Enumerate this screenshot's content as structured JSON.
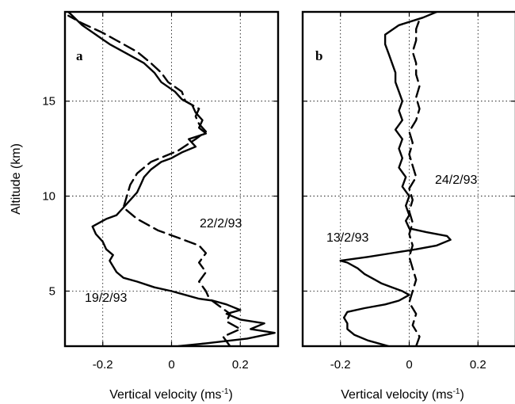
{
  "chart_data": [
    {
      "panel": "a",
      "type": "line",
      "xlabel": "Vertical velocity (ms-1)",
      "ylabel": "Altitude (km)",
      "xlim": [
        -0.31,
        0.31
      ],
      "ylim": [
        2.1,
        19.7
      ],
      "xticks": [
        -0.2,
        0,
        0.2
      ],
      "xtick_labels": [
        "-0.2",
        "0",
        "0.2"
      ],
      "yticks": [
        5,
        10,
        15
      ],
      "ytick_labels": [
        "5",
        "10",
        "15"
      ],
      "grid": true,
      "series": [
        {
          "name": "19/2/93",
          "style": "solid",
          "points": [
            [
              0.02,
              2.1
            ],
            [
              0.1,
              2.25
            ],
            [
              0.22,
              2.5
            ],
            [
              0.3,
              2.8
            ],
            [
              0.23,
              3.0
            ],
            [
              0.27,
              3.3
            ],
            [
              0.2,
              3.5
            ],
            [
              0.16,
              3.8
            ],
            [
              0.2,
              4.0
            ],
            [
              0.16,
              4.3
            ],
            [
              0.12,
              4.5
            ],
            [
              0.08,
              4.6
            ],
            [
              0.04,
              4.8
            ],
            [
              0.0,
              5.0
            ],
            [
              -0.05,
              5.2
            ],
            [
              -0.1,
              5.5
            ],
            [
              -0.14,
              5.7
            ],
            [
              -0.16,
              6.0
            ],
            [
              -0.17,
              6.3
            ],
            [
              -0.18,
              6.6
            ],
            [
              -0.17,
              6.9
            ],
            [
              -0.19,
              7.2
            ],
            [
              -0.2,
              7.6
            ],
            [
              -0.22,
              8.0
            ],
            [
              -0.23,
              8.4
            ],
            [
              -0.19,
              8.8
            ],
            [
              -0.16,
              9.0
            ],
            [
              -0.14,
              9.4
            ],
            [
              -0.12,
              9.8
            ],
            [
              -0.1,
              10.2
            ],
            [
              -0.09,
              10.6
            ],
            [
              -0.08,
              11.0
            ],
            [
              -0.06,
              11.4
            ],
            [
              -0.03,
              11.8
            ],
            [
              0.0,
              12.0
            ],
            [
              0.03,
              12.3
            ],
            [
              0.07,
              12.6
            ],
            [
              0.05,
              13.0
            ],
            [
              0.1,
              13.3
            ],
            [
              0.08,
              13.6
            ],
            [
              0.09,
              14.0
            ],
            [
              0.07,
              14.4
            ],
            [
              0.06,
              14.8
            ],
            [
              0.03,
              15.1
            ],
            [
              0.01,
              15.5
            ],
            [
              -0.03,
              16.0
            ],
            [
              -0.05,
              16.5
            ],
            [
              -0.08,
              17.0
            ],
            [
              -0.13,
              17.5
            ],
            [
              -0.18,
              18.0
            ],
            [
              -0.22,
              18.5
            ],
            [
              -0.26,
              19.0
            ],
            [
              -0.3,
              19.7
            ]
          ]
        },
        {
          "name": "22/2/93",
          "style": "dashed",
          "points": [
            [
              0.17,
              2.1
            ],
            [
              0.15,
              2.6
            ],
            [
              0.2,
              3.0
            ],
            [
              0.16,
              3.4
            ],
            [
              0.17,
              3.8
            ],
            [
              0.14,
              4.2
            ],
            [
              0.11,
              4.6
            ],
            [
              0.1,
              5.0
            ],
            [
              0.08,
              5.5
            ],
            [
              0.1,
              6.0
            ],
            [
              0.08,
              6.5
            ],
            [
              0.1,
              7.0
            ],
            [
              0.08,
              7.4
            ],
            [
              0.02,
              7.8
            ],
            [
              -0.04,
              8.2
            ],
            [
              -0.1,
              8.8
            ],
            [
              -0.14,
              9.4
            ],
            [
              -0.13,
              10.0
            ],
            [
              -0.12,
              10.6
            ],
            [
              -0.1,
              11.2
            ],
            [
              -0.06,
              11.8
            ],
            [
              0.02,
              12.4
            ],
            [
              0.07,
              13.0
            ],
            [
              0.1,
              13.4
            ],
            [
              0.08,
              13.8
            ],
            [
              0.07,
              14.2
            ],
            [
              0.08,
              14.6
            ],
            [
              0.04,
              15.0
            ],
            [
              0.03,
              15.5
            ],
            [
              -0.01,
              16.0
            ],
            [
              -0.03,
              16.5
            ],
            [
              -0.06,
              17.0
            ],
            [
              -0.1,
              17.6
            ],
            [
              -0.16,
              18.2
            ],
            [
              -0.2,
              18.6
            ],
            [
              -0.26,
              19.1
            ],
            [
              -0.3,
              19.5
            ]
          ]
        }
      ]
    },
    {
      "panel": "b",
      "type": "line",
      "xlabel": "Vertical velocity (ms-1)",
      "xlim": [
        -0.31,
        0.31
      ],
      "ylim": [
        2.1,
        19.7
      ],
      "xticks": [
        -0.2,
        0,
        0.2
      ],
      "xtick_labels": [
        "-0.2",
        "0",
        "0.2"
      ],
      "yticks": [
        5,
        10,
        15
      ],
      "grid": true,
      "series": [
        {
          "name": "13/2/93",
          "style": "solid",
          "points": [
            [
              -0.06,
              2.1
            ],
            [
              -0.12,
              2.4
            ],
            [
              -0.16,
              2.7
            ],
            [
              -0.18,
              3.0
            ],
            [
              -0.18,
              3.3
            ],
            [
              -0.19,
              3.6
            ],
            [
              -0.18,
              3.9
            ],
            [
              -0.13,
              4.1
            ],
            [
              -0.07,
              4.3
            ],
            [
              -0.03,
              4.5
            ],
            [
              0.0,
              4.8
            ],
            [
              -0.02,
              5.0
            ],
            [
              -0.05,
              5.2
            ],
            [
              -0.08,
              5.4
            ],
            [
              -0.1,
              5.6
            ],
            [
              -0.13,
              5.9
            ],
            [
              -0.15,
              6.2
            ],
            [
              -0.18,
              6.5
            ],
            [
              -0.2,
              6.6
            ],
            [
              -0.12,
              6.8
            ],
            [
              -0.05,
              7.0
            ],
            [
              0.02,
              7.2
            ],
            [
              0.08,
              7.4
            ],
            [
              0.12,
              7.7
            ],
            [
              0.11,
              7.9
            ],
            [
              0.05,
              8.1
            ],
            [
              0.0,
              8.3
            ],
            [
              -0.01,
              8.7
            ],
            [
              0.0,
              9.0
            ],
            [
              -0.01,
              9.5
            ],
            [
              0.0,
              10.0
            ],
            [
              -0.02,
              10.5
            ],
            [
              -0.01,
              11.0
            ],
            [
              -0.03,
              11.5
            ],
            [
              -0.02,
              12.0
            ],
            [
              -0.03,
              12.5
            ],
            [
              -0.02,
              13.0
            ],
            [
              -0.04,
              13.5
            ],
            [
              -0.02,
              14.0
            ],
            [
              -0.03,
              14.5
            ],
            [
              -0.02,
              15.0
            ],
            [
              -0.03,
              15.5
            ],
            [
              -0.04,
              16.0
            ],
            [
              -0.04,
              16.5
            ],
            [
              -0.05,
              17.0
            ],
            [
              -0.06,
              17.5
            ],
            [
              -0.07,
              18.0
            ],
            [
              -0.07,
              18.5
            ],
            [
              -0.03,
              19.0
            ],
            [
              0.04,
              19.4
            ],
            [
              0.08,
              19.7
            ]
          ]
        },
        {
          "name": "24/2/93",
          "style": "dashed",
          "points": [
            [
              0.02,
              2.1
            ],
            [
              0.03,
              2.6
            ],
            [
              0.01,
              3.2
            ],
            [
              0.02,
              3.8
            ],
            [
              0.0,
              4.4
            ],
            [
              0.01,
              5.0
            ],
            [
              0.02,
              5.6
            ],
            [
              0.01,
              6.2
            ],
            [
              0.0,
              6.8
            ],
            [
              0.01,
              7.4
            ],
            [
              0.0,
              8.0
            ],
            [
              0.01,
              8.6
            ],
            [
              0.0,
              9.2
            ],
            [
              0.01,
              9.8
            ],
            [
              0.0,
              10.4
            ],
            [
              0.02,
              11.0
            ],
            [
              0.01,
              11.6
            ],
            [
              0.0,
              12.2
            ],
            [
              0.01,
              12.8
            ],
            [
              0.0,
              13.4
            ],
            [
              0.02,
              14.0
            ],
            [
              0.03,
              14.6
            ],
            [
              0.02,
              15.2
            ],
            [
              0.03,
              15.8
            ],
            [
              0.02,
              16.4
            ],
            [
              0.02,
              17.0
            ],
            [
              0.01,
              17.6
            ],
            [
              0.02,
              18.2
            ],
            [
              0.02,
              18.8
            ],
            [
              0.03,
              19.3
            ]
          ]
        }
      ]
    }
  ]
}
